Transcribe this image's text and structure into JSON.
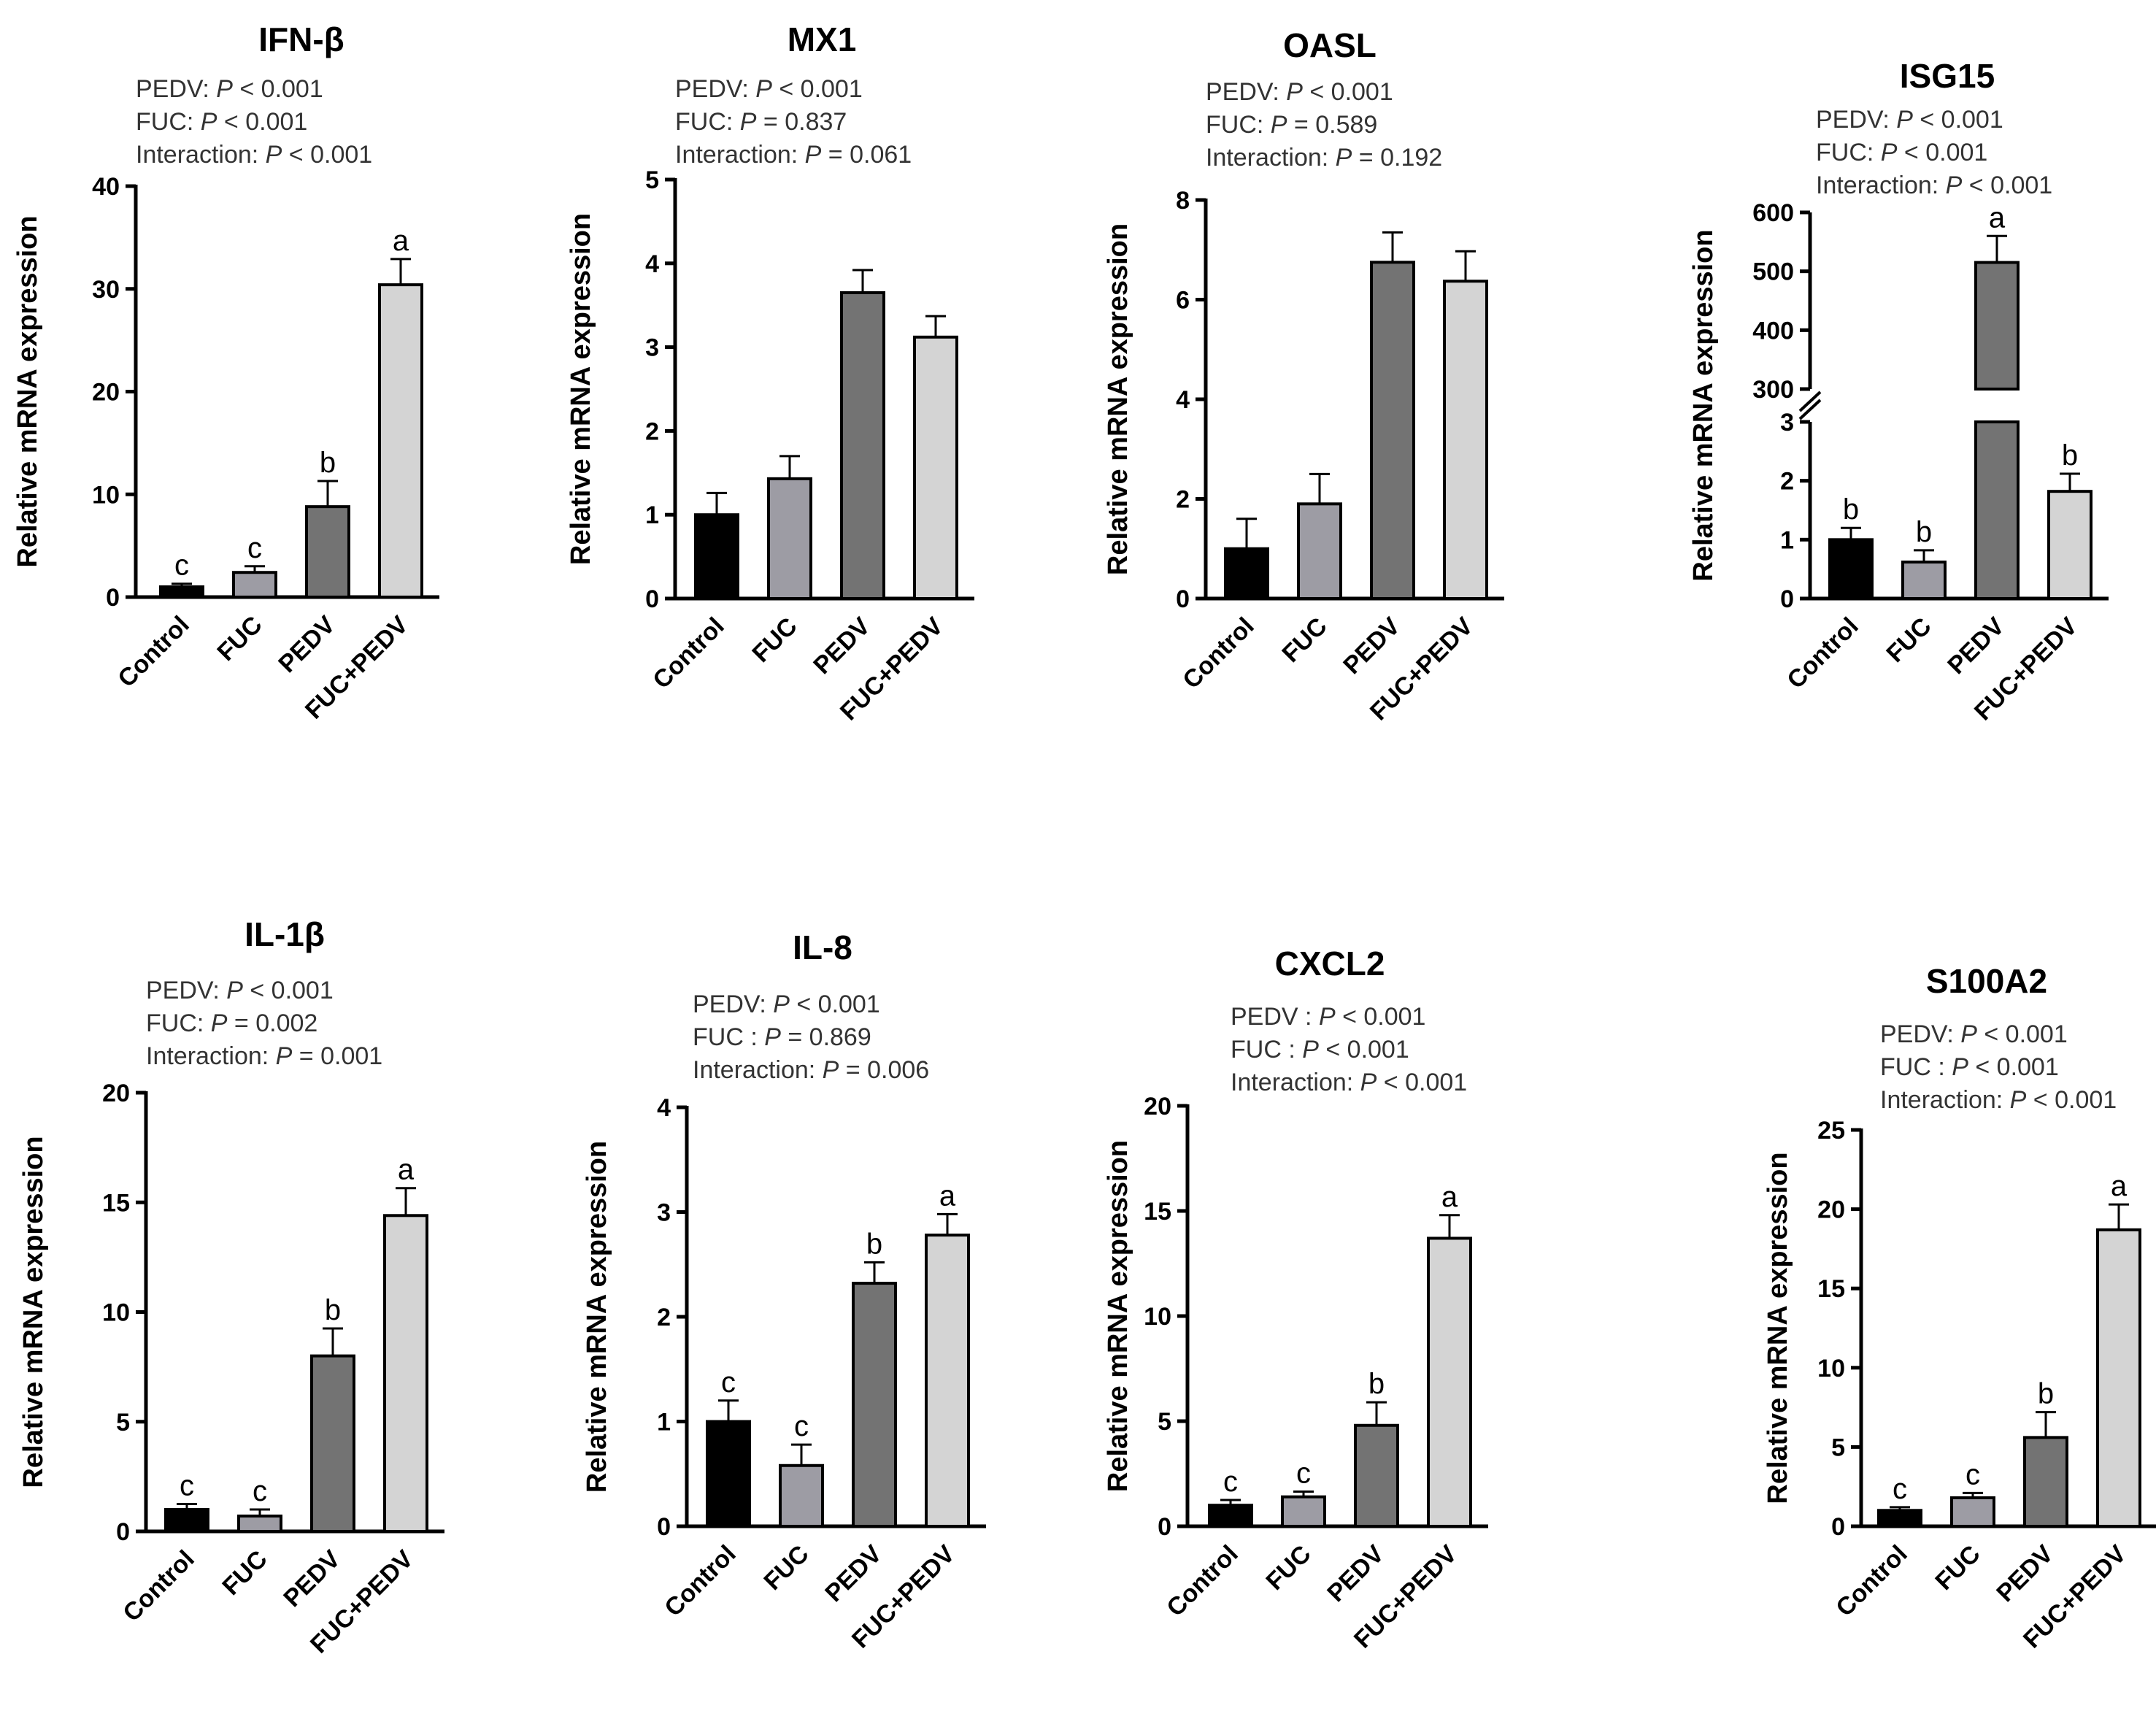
{
  "figure": {
    "colors": {
      "Control": "#000000",
      "FUC": "#9d9ca4",
      "PEDV": "#737373",
      "FUC+PEDV": "#d4d4d4",
      "axis": "#000000"
    }
  },
  "chart_data": [
    {
      "type": "bar",
      "title": "IFN-β",
      "stats": [
        {
          "label": "PEDV: ",
          "p": "P",
          "rest": " < 0.001"
        },
        {
          "label": "FUC: ",
          "p": "P",
          "rest": " < 0.001"
        },
        {
          "label": "Interaction: ",
          "p": "P",
          "rest": " < 0.001"
        }
      ],
      "ylabel": "Relative mRNA expression",
      "ylim": [
        0,
        40
      ],
      "yticks": [
        0,
        10,
        20,
        30,
        40
      ],
      "categories": [
        "Control",
        "FUC",
        "PEDV",
        "FUC+PEDV"
      ],
      "values": [
        1,
        2.4,
        8.8,
        30.4
      ],
      "errors": [
        0.3,
        0.6,
        2.5,
        2.5
      ],
      "letters": [
        "c",
        "c",
        "b",
        "a"
      ]
    },
    {
      "type": "bar",
      "title": "MX1",
      "stats": [
        {
          "label": "PEDV: ",
          "p": "P",
          "rest": " < 0.001"
        },
        {
          "label": "FUC: ",
          "p": "P",
          "rest": " = 0.837"
        },
        {
          "label": "Interaction: ",
          "p": "P",
          "rest": " = 0.061"
        }
      ],
      "ylabel": "Relative mRNA expression",
      "ylim": [
        0,
        5
      ],
      "yticks": [
        0,
        1,
        2,
        3,
        4,
        5
      ],
      "categories": [
        "Control",
        "FUC",
        "PEDV",
        "FUC+PEDV"
      ],
      "values": [
        1,
        1.43,
        3.65,
        3.12
      ],
      "errors": [
        0.26,
        0.27,
        0.27,
        0.25
      ],
      "letters": [
        "",
        "",
        "",
        ""
      ]
    },
    {
      "type": "bar",
      "title": "OASL",
      "stats": [
        {
          "label": "PEDV: ",
          "p": "P",
          "rest": " < 0.001"
        },
        {
          "label": "FUC: ",
          "p": "P",
          "rest": " = 0.589"
        },
        {
          "label": "Interaction: ",
          "p": "P",
          "rest": " = 0.192"
        }
      ],
      "ylabel": "Relative mRNA expression",
      "ylim": [
        0,
        8
      ],
      "yticks": [
        0,
        2,
        4,
        6,
        8
      ],
      "categories": [
        "Control",
        "FUC",
        "PEDV",
        "FUC+PEDV"
      ],
      "values": [
        1,
        1.9,
        6.75,
        6.37
      ],
      "errors": [
        0.6,
        0.6,
        0.6,
        0.6
      ],
      "letters": [
        "",
        "",
        "",
        ""
      ]
    },
    {
      "type": "bar",
      "title": "ISG15",
      "axis_break": true,
      "stats": [
        {
          "label": "PEDV: ",
          "p": "P",
          "rest": " < 0.001"
        },
        {
          "label": "FUC: ",
          "p": "P",
          "rest": " < 0.001"
        },
        {
          "label": "Interaction: ",
          "p": "P",
          "rest": " < 0.001"
        }
      ],
      "ylabel": "Relative mRNA expression",
      "ylim_lower": [
        0,
        3
      ],
      "ylim_upper": [
        300,
        600
      ],
      "yticks_lower": [
        0,
        1,
        2,
        3
      ],
      "yticks_upper": [
        300,
        400,
        500,
        600
      ],
      "categories": [
        "Control",
        "FUC",
        "PEDV",
        "FUC+PEDV"
      ],
      "values": [
        1,
        0.62,
        515,
        1.82
      ],
      "errors": [
        0.2,
        0.2,
        45,
        0.3
      ],
      "letters": [
        "b",
        "b",
        "a",
        "b"
      ]
    },
    {
      "type": "bar",
      "title": "IL-1β",
      "stats": [
        {
          "label": "PEDV: ",
          "p": "P",
          "rest": " < 0.001"
        },
        {
          "label": "FUC: ",
          "p": "P",
          "rest": " = 0.002"
        },
        {
          "label": "Interaction: ",
          "p": "P",
          "rest": " = 0.001"
        }
      ],
      "ylabel": "Relative mRNA expression",
      "ylim": [
        0,
        20
      ],
      "yticks": [
        0,
        5,
        10,
        15,
        20
      ],
      "categories": [
        "Control",
        "FUC",
        "PEDV",
        "FUC+PEDV"
      ],
      "values": [
        1,
        0.7,
        8,
        14.4
      ],
      "errors": [
        0.25,
        0.3,
        1.25,
        1.25
      ],
      "letters": [
        "c",
        "c",
        "b",
        "a"
      ]
    },
    {
      "type": "bar",
      "title": "IL-8",
      "stats": [
        {
          "label": "PEDV: ",
          "p": "P",
          "rest": " < 0.001"
        },
        {
          "label": "FUC : ",
          "p": "P",
          "rest": " = 0.869"
        },
        {
          "label": "Interaction: ",
          "p": "P",
          "rest": " = 0.006"
        }
      ],
      "ylabel": "Relative mRNA expression",
      "ylim": [
        0,
        4
      ],
      "yticks": [
        0,
        1,
        2,
        3,
        4
      ],
      "categories": [
        "Control",
        "FUC",
        "PEDV",
        "FUC+PEDV"
      ],
      "values": [
        1,
        0.58,
        2.32,
        2.78
      ],
      "errors": [
        0.2,
        0.2,
        0.2,
        0.2
      ],
      "letters": [
        "c",
        "c",
        "b",
        "a"
      ]
    },
    {
      "type": "bar",
      "title": "CXCL2",
      "stats": [
        {
          "label": "PEDV : ",
          "p": "P",
          "rest": " < 0.001"
        },
        {
          "label": "FUC : ",
          "p": "P",
          "rest": " < 0.001"
        },
        {
          "label": "Interaction: ",
          "p": "P",
          "rest": " < 0.001"
        }
      ],
      "ylabel": "Relative mRNA expression",
      "ylim": [
        0,
        20
      ],
      "yticks": [
        0,
        5,
        10,
        15,
        20
      ],
      "categories": [
        "Control",
        "FUC",
        "PEDV",
        "FUC+PEDV"
      ],
      "values": [
        1,
        1.4,
        4.8,
        13.7
      ],
      "errors": [
        0.25,
        0.25,
        1.1,
        1.1
      ],
      "letters": [
        "c",
        "c",
        "b",
        "a"
      ]
    },
    {
      "type": "bar",
      "title": "S100A2",
      "stats": [
        {
          "label": "PEDV: ",
          "p": "P",
          "rest": " < 0.001"
        },
        {
          "label": "FUC : ",
          "p": "P",
          "rest": " < 0.001"
        },
        {
          "label": "Interaction: ",
          "p": "P",
          "rest": " < 0.001"
        }
      ],
      "ylabel": "Relative mRNA expression",
      "ylim": [
        0,
        25
      ],
      "yticks": [
        0,
        5,
        10,
        15,
        20,
        25
      ],
      "categories": [
        "Control",
        "FUC",
        "PEDV",
        "FUC+PEDV"
      ],
      "values": [
        1,
        1.8,
        5.6,
        18.7
      ],
      "errors": [
        0.2,
        0.3,
        1.6,
        1.6
      ],
      "letters": [
        "c",
        "c",
        "b",
        "a"
      ]
    }
  ]
}
